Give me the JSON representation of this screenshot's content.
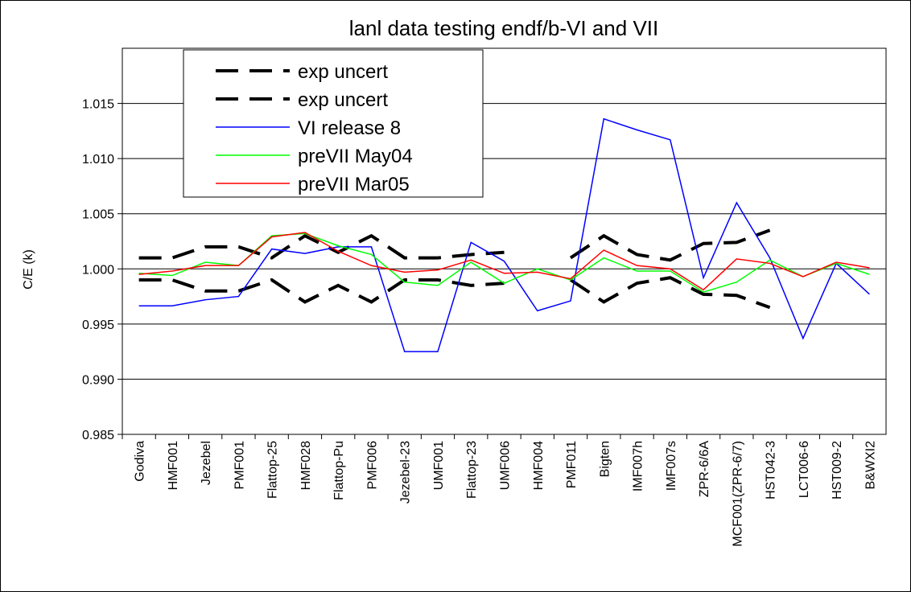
{
  "chart_data": {
    "type": "line",
    "title": "lanl data testing endf/b-VI and VII",
    "y_label": "C/E (k)",
    "categories": [
      "Godiva",
      "HMF001",
      "Jezebel",
      "PMF001",
      "Flattop-25",
      "HMF028",
      "Flattop-Pu",
      "PMF006",
      "Jezebel-23",
      "UMF001",
      "Flattop-23",
      "UMF006",
      "HMF004",
      "PMF011",
      "Bigten",
      "IMF007h",
      "IMF007s",
      "ZPR-6/6A",
      "MCF001(ZPR-6/7)",
      "HST042-3",
      "LCT006-6",
      "HST009-2",
      "B&WXI2"
    ],
    "series": [
      {
        "name": "exp uncert",
        "color": "#000000",
        "dashed": true,
        "values": [
          1.001,
          1.001,
          1.002,
          1.002,
          1.001,
          1.003,
          1.0015,
          1.003,
          1.001,
          1.001,
          1.0013,
          1.0015,
          null,
          1.001,
          1.003,
          1.0013,
          1.0008,
          1.0023,
          1.0024,
          1.0035,
          null,
          null,
          null
        ]
      },
      {
        "name": "exp uncert",
        "color": "#000000",
        "dashed": true,
        "values": [
          0.999,
          0.999,
          0.998,
          0.998,
          0.999,
          0.997,
          0.9985,
          0.997,
          0.999,
          0.999,
          0.9985,
          0.9987,
          null,
          0.999,
          0.997,
          0.9987,
          0.9992,
          0.9977,
          0.9976,
          0.9965,
          null,
          null,
          null
        ]
      },
      {
        "name": "VI release 8",
        "color": "#0000ff",
        "dashed": false,
        "values": [
          0.99665,
          0.99665,
          0.9972,
          0.9975,
          1.0018,
          1.0014,
          1.002,
          1.002,
          0.9925,
          0.9925,
          1.0024,
          1.0007,
          0.9962,
          0.9971,
          1.0136,
          1.0126,
          1.0117,
          0.9992,
          1.006,
          1.001,
          0.9937,
          1.0005,
          0.9977
        ]
      },
      {
        "name": "preVII May04",
        "color": "#00ff00",
        "dashed": false,
        "values": [
          0.9996,
          0.9994,
          1.0006,
          1.0003,
          1.003,
          1.0032,
          1.0021,
          1.0013,
          0.9988,
          0.9985,
          1.0006,
          0.9987,
          1.0,
          0.999,
          1.001,
          0.9998,
          0.9998,
          0.9979,
          0.9988,
          1.0008,
          0.9993,
          1.0005,
          0.9995
        ]
      },
      {
        "name": "preVII Mar05",
        "color": "#ff0000",
        "dashed": false,
        "values": [
          0.9995,
          0.9998,
          1.0003,
          1.0003,
          1.0029,
          1.0033,
          1.0016,
          1.0003,
          0.9997,
          0.9999,
          1.0008,
          0.9996,
          0.9997,
          0.9991,
          1.0017,
          1.0003,
          1.0,
          0.9981,
          1.0009,
          1.0005,
          0.9993,
          1.0006,
          1.0001
        ]
      }
    ],
    "ylim": [
      0.985,
      1.02
    ],
    "yticks": [
      {
        "value": 0.985,
        "label": "0.985"
      },
      {
        "value": 0.99,
        "label": "0.990"
      },
      {
        "value": 0.995,
        "label": "0.995"
      },
      {
        "value": 1.0,
        "label": "1.000"
      },
      {
        "value": 1.005,
        "label": "1.005"
      },
      {
        "value": 1.01,
        "label": "1.010"
      },
      {
        "value": 1.015,
        "label": "1.015"
      }
    ],
    "grid": true,
    "legend": "top-left"
  }
}
